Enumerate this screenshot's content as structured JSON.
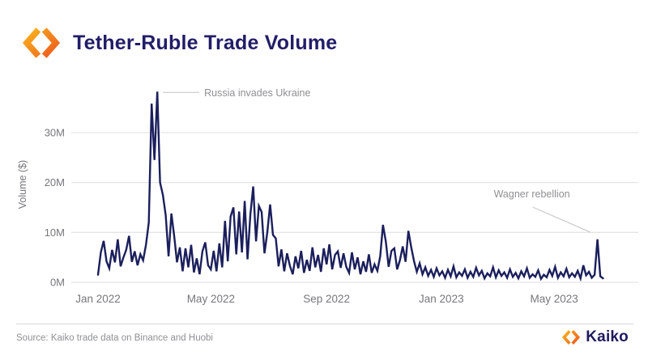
{
  "header": {
    "title": "Tether-Ruble Trade Volume"
  },
  "footer": {
    "source": "Source: Kaiko trade data on Binance and Huobi",
    "brand": "Kaiko"
  },
  "colors": {
    "line": "#1b1f5c",
    "title_navy": "#221d68",
    "grid": "#e5e5e7",
    "axis_text": "#76777a",
    "annotation_text": "#8e8f91",
    "annotation_line": "#c9cacc",
    "logo_orange_light": "#f9a61b",
    "logo_orange_dark": "#ef6d1d"
  },
  "chart_data": {
    "type": "line",
    "title": "Tether-Ruble Trade Volume",
    "xlabel": "",
    "ylabel": "Volume ($)",
    "ylim": [
      0,
      40000000
    ],
    "grid": true,
    "legend": false,
    "yticks": [
      {
        "label": "0M",
        "value_m": 0
      },
      {
        "label": "10M",
        "value_m": 10
      },
      {
        "label": "20M",
        "value_m": 20
      },
      {
        "label": "30M",
        "value_m": 30
      }
    ],
    "xticks": [
      {
        "label": "Jan 2022",
        "day": 0
      },
      {
        "label": "May 2022",
        "day": 120
      },
      {
        "label": "Sep 2022",
        "day": 243
      },
      {
        "label": "Jan 2023",
        "day": 365
      },
      {
        "label": "May 2023",
        "day": 485
      }
    ],
    "x_span_days": 546,
    "series": [
      {
        "name": "Tether-Ruble trade volume (USD, millions)",
        "step_days": 3,
        "values": [
          1.5,
          6.0,
          8.3,
          4.2,
          2.8,
          6.5,
          4.0,
          8.6,
          3.2,
          5.0,
          6.5,
          9.3,
          4.1,
          6.2,
          3.4,
          5.6,
          4.4,
          7.5,
          12.0,
          35.8,
          24.5,
          38.2,
          20.0,
          17.5,
          13.4,
          5.2,
          13.8,
          9.2,
          4.0,
          7.0,
          2.2,
          6.8,
          3.0,
          7.5,
          2.0,
          4.8,
          1.6,
          6.2,
          8.0,
          3.4,
          2.6,
          6.3,
          2.2,
          7.8,
          3.0,
          12.3,
          4.2,
          13.2,
          15.0,
          5.6,
          14.2,
          6.0,
          16.3,
          4.6,
          13.6,
          19.2,
          8.2,
          15.3,
          14.1,
          5.8,
          10.0,
          15.6,
          9.5,
          8.8,
          3.2,
          6.6,
          2.2,
          5.8,
          3.3,
          1.6,
          5.2,
          2.8,
          6.3,
          1.9,
          4.5,
          2.3,
          7.0,
          3.0,
          5.5,
          2.1,
          6.8,
          3.6,
          7.6,
          2.6,
          5.5,
          6.2,
          2.9,
          5.8,
          3.1,
          1.9,
          6.0,
          2.6,
          5.0,
          1.6,
          4.2,
          2.1,
          5.6,
          1.9,
          3.6,
          2.3,
          5.2,
          11.5,
          8.2,
          3.1,
          6.3,
          6.8,
          2.6,
          4.4,
          7.2,
          4.1,
          10.3,
          7.0,
          4.2,
          2.1,
          3.8,
          1.6,
          3.0,
          1.3,
          2.5,
          1.1,
          2.8,
          1.4,
          2.2,
          0.9,
          2.5,
          1.2,
          3.2,
          1.0,
          2.0,
          1.3,
          2.6,
          0.9,
          2.1,
          1.1,
          2.9,
          1.4,
          2.3,
          0.8,
          1.8,
          1.2,
          3.0,
          1.0,
          2.4,
          1.3,
          2.0,
          0.9,
          2.6,
          1.1,
          1.9,
          0.8,
          2.2,
          1.2,
          2.8,
          0.9,
          1.6,
          1.1,
          2.4,
          0.7,
          1.5,
          1.0,
          2.5,
          1.3,
          3.1,
          0.9,
          2.0,
          1.2,
          2.7,
          1.0,
          1.8,
          1.1,
          2.3,
          0.8,
          3.4,
          1.4,
          2.1,
          0.9,
          1.5,
          8.6,
          1.2,
          0.8
        ]
      }
    ],
    "annotations": [
      {
        "text": "Russia invades Ukraine",
        "point_index": 21,
        "value_m": 38.2
      },
      {
        "text": "Wagner rebellion",
        "point_index": 177,
        "value_m": 8.6
      }
    ]
  }
}
